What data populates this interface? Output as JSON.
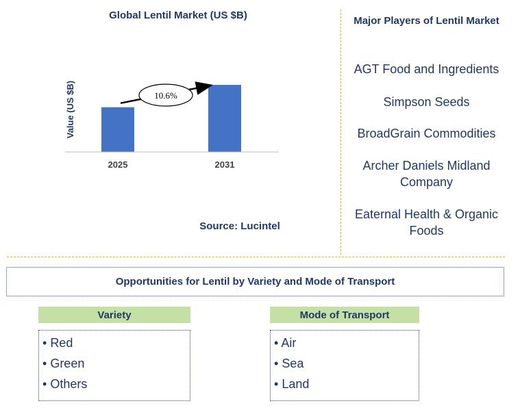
{
  "chart_data": {
    "type": "bar",
    "title": "Global Lentil Market (US $B)",
    "ylabel": "Value (US $B)",
    "categories": [
      "2025",
      "2031"
    ],
    "values": [
      1.0,
      1.5
    ],
    "annotation": {
      "label": "10.6%"
    },
    "colors": {
      "bar": "#4472c4",
      "text": "#1f3864",
      "axis": "#bfbfbf"
    }
  },
  "source": "Source: Lucintel",
  "players": {
    "title": "Major Players of Lentil Market",
    "items": [
      "AGT Food and Ingredients",
      "Simpson Seeds",
      "BroadGrain Commodities",
      "Archer Daniels Midland Company",
      "Eaternal Health & Organic Foods"
    ]
  },
  "opportunities": {
    "title": "Opportunities for Lentil by Variety and Mode of Transport",
    "segments": [
      {
        "header": "Variety",
        "items": [
          "Red",
          "Green",
          "Others"
        ]
      },
      {
        "header": "Mode of Transport",
        "items": [
          "Air",
          "Sea",
          "Land"
        ]
      }
    ]
  },
  "colors": {
    "divider": "#f0b400",
    "segment_header_bg": "#c5e0a5",
    "text": "#1f3864"
  }
}
